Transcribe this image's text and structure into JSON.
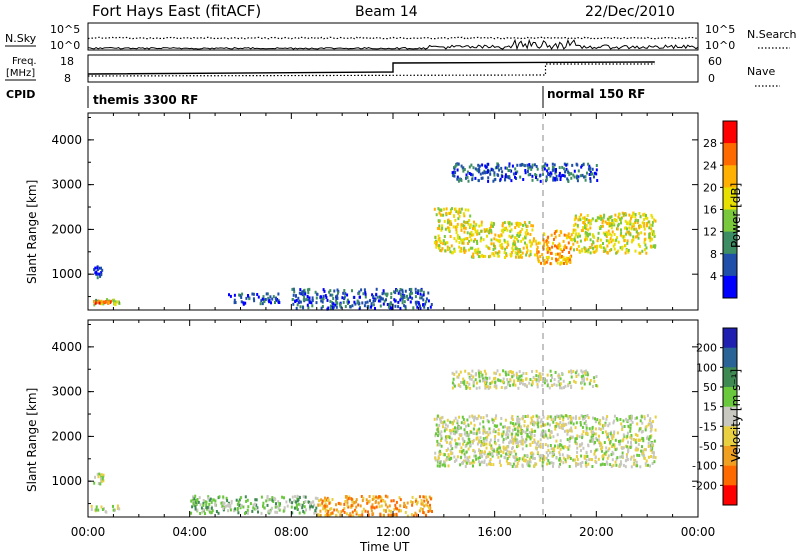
{
  "header": {
    "station": "Fort Hays East (fitACF)",
    "beam": "Beam 14",
    "date": "22/Dec/2010"
  },
  "noise_panel": {
    "left_label": "N.Sky",
    "right_label": "N.Search",
    "yticks": [
      "10^5",
      "10^0"
    ]
  },
  "freq_panel": {
    "left_label": "Freq.",
    "left_unit": "[MHz]",
    "right_label": "Nave",
    "left_ticks": [
      "18",
      "8"
    ],
    "right_ticks": [
      "60",
      "0"
    ]
  },
  "cpid_panel": {
    "label": "CPID",
    "modes": [
      {
        "name": "themis 3300 RF",
        "start_hour": 0
      },
      {
        "name": "normal 150 RF",
        "start_hour": 18
      }
    ]
  },
  "chart_data": [
    {
      "type": "heatmap",
      "name": "power",
      "ylabel": "Slant Range [km]",
      "xlabel": "Time UT",
      "xlim": [
        0,
        24
      ],
      "ylim": [
        200,
        4600
      ],
      "yticks": [
        "4000",
        "3000",
        "2000",
        "1000"
      ],
      "xticks": [
        "00:00",
        "04:00",
        "08:00",
        "12:00",
        "16:00",
        "20:00",
        "00:00"
      ],
      "colorbar": {
        "label": "Power [dB]",
        "ticks": [
          "28",
          "24",
          "20",
          "16",
          "12",
          "8",
          "4"
        ],
        "colors": [
          "#ff0000",
          "#ff6a00",
          "#ffb000",
          "#e8e000",
          "#7ac83c",
          "#3c8c64",
          "#1f4fa8",
          "#0000ff"
        ]
      },
      "regions": [
        {
          "t0": 0.0,
          "t1": 1.2,
          "r0": 330,
          "r1": 480,
          "level": 4
        },
        {
          "t0": 0.2,
          "t1": 0.9,
          "r0": 380,
          "r1": 440,
          "level": 1
        },
        {
          "t0": 0.2,
          "t1": 0.6,
          "r0": 950,
          "r1": 1200,
          "level": 6
        },
        {
          "t0": 5.5,
          "t1": 7.5,
          "r0": 350,
          "r1": 600,
          "level": 6
        },
        {
          "t0": 8.0,
          "t1": 13.5,
          "r0": 250,
          "r1": 700,
          "level": 6
        },
        {
          "t0": 13.6,
          "t1": 15.0,
          "r0": 1500,
          "r1": 2500,
          "level": 3
        },
        {
          "t0": 15.0,
          "t1": 17.5,
          "r0": 1400,
          "r1": 2200,
          "level": 3
        },
        {
          "t0": 17.5,
          "t1": 19.0,
          "r0": 1250,
          "r1": 2000,
          "level": 2
        },
        {
          "t0": 19.0,
          "t1": 22.3,
          "r0": 1500,
          "r1": 2400,
          "level": 3
        },
        {
          "t0": 14.3,
          "t1": 20.0,
          "r0": 3100,
          "r1": 3500,
          "level": 6
        }
      ]
    },
    {
      "type": "heatmap",
      "name": "velocity",
      "ylabel": "Slant Range [km]",
      "xlabel": "Time UT",
      "xlim": [
        0,
        24
      ],
      "ylim": [
        200,
        4600
      ],
      "yticks": [
        "4000",
        "3000",
        "2000",
        "1000"
      ],
      "xticks": [
        "00:00",
        "04:00",
        "08:00",
        "12:00",
        "16:00",
        "20:00",
        "00:00"
      ],
      "colorbar": {
        "label": "Velocity [m s⁻¹]",
        "ticks": [
          "200",
          "100",
          "50",
          "15",
          "-15",
          "-50",
          "-100",
          "-200"
        ],
        "colors": [
          "#2020b0",
          "#2a6496",
          "#3e8a52",
          "#6ac83c",
          "#c8c8c0",
          "#e8d040",
          "#f0a020",
          "#ff6a00",
          "#ff0000"
        ]
      },
      "regions": [
        {
          "t0": 0.0,
          "t1": 1.2,
          "r0": 330,
          "r1": 480,
          "level": 4
        },
        {
          "t0": 0.2,
          "t1": 0.6,
          "r0": 950,
          "r1": 1200,
          "level": 4
        },
        {
          "t0": 4.0,
          "t1": 9.0,
          "r0": 300,
          "r1": 700,
          "level": 3
        },
        {
          "t0": 9.0,
          "t1": 13.5,
          "r0": 250,
          "r1": 700,
          "level": 6
        },
        {
          "t0": 13.6,
          "t1": 22.3,
          "r0": 1350,
          "r1": 2500,
          "level": 4
        },
        {
          "t0": 14.3,
          "t1": 20.0,
          "r0": 3100,
          "r1": 3500,
          "level": 4
        }
      ]
    }
  ]
}
